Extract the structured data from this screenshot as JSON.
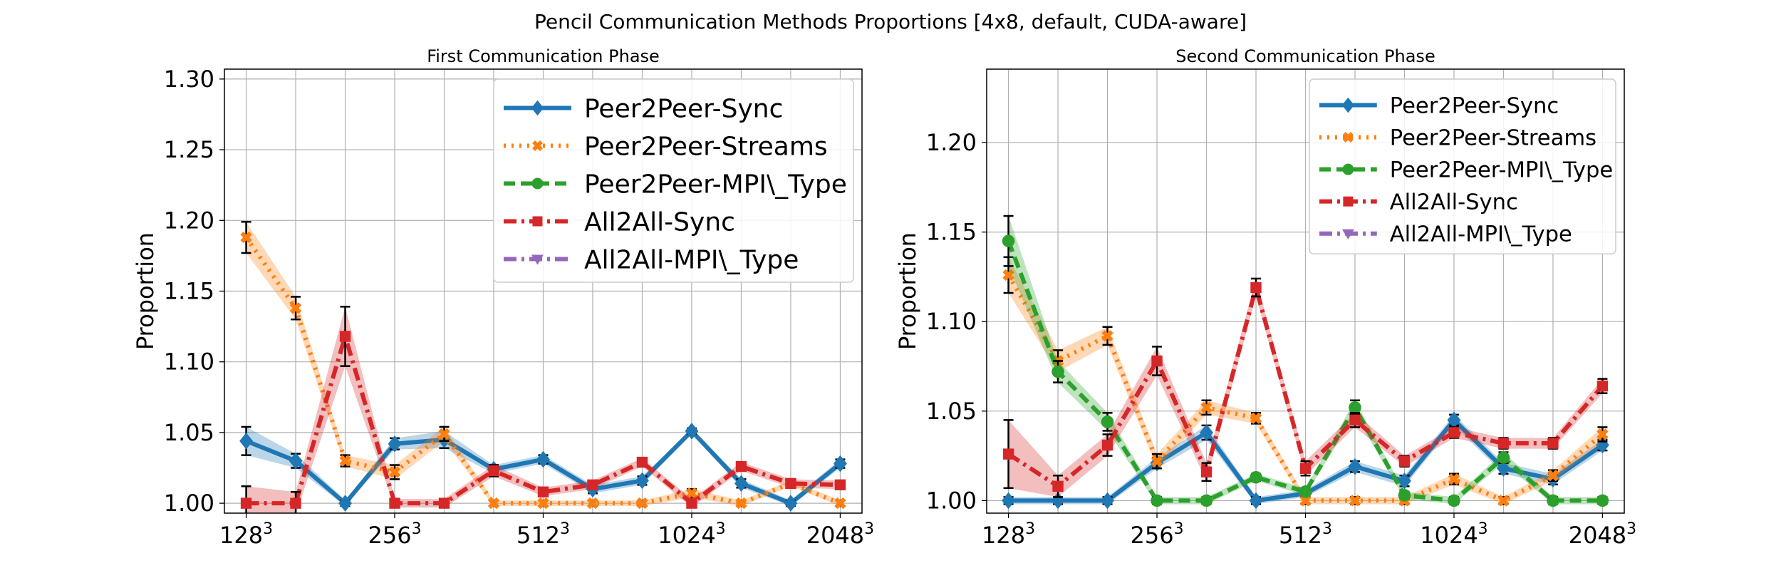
{
  "figure": {
    "suptitle": "Pencil Communication Methods Proportions [4x8, default, CUDA-aware]"
  },
  "chart_data": [
    {
      "type": "line",
      "title": "First Communication Phase",
      "ylabel": "Proportion",
      "xlabel": "",
      "ylim": [
        0.993,
        1.307
      ],
      "yticks": [
        "1.00",
        "1.05",
        "1.10",
        "1.15",
        "1.20",
        "1.25",
        "1.30"
      ],
      "ytick_values": [
        1.0,
        1.05,
        1.1,
        1.15,
        1.2,
        1.25,
        1.3
      ],
      "xtick_labels": [
        {
          "pos": 0,
          "base": "128",
          "exp": "3"
        },
        {
          "pos": 2,
          "base": "256",
          "exp": "3"
        },
        {
          "pos": 4,
          "base": "512",
          "exp": "3"
        },
        {
          "pos": 6,
          "base": "1024",
          "exp": "3"
        },
        {
          "pos": 8,
          "base": "2048",
          "exp": "3"
        }
      ],
      "x_positions": [
        0,
        0.5,
        1,
        1.5,
        2,
        2.5,
        3,
        3.5,
        4,
        4.5,
        5,
        5.5,
        6,
        6.5,
        7,
        7.5,
        8
      ],
      "grid": true,
      "legend_placement": "top-right",
      "legend_font": "large",
      "series": [
        {
          "name": "Peer2Peer-Sync",
          "color": "#1f77b4",
          "marker": "diamond",
          "linestyle": "solid",
          "values": [
            1.044,
            1.03,
            1.0,
            1.042,
            1.045,
            1.024,
            1.031,
            1.01,
            1.016,
            1.051,
            1.014,
            1.0,
            1.028
          ],
          "x_index": [
            0,
            0.5,
            1,
            1.5,
            2,
            2.5,
            3,
            3.5,
            4,
            4.5,
            5,
            5.5,
            6
          ],
          "error": [
            0.01,
            0.005,
            0.002,
            0.004,
            0.006,
            0.003,
            0.003,
            0.003,
            0.003,
            0.002,
            0.003,
            0.002,
            0.003
          ]
        },
        {
          "name": "Peer2Peer-Streams",
          "color": "#ff7f0e",
          "marker": "x",
          "linestyle": "dotted",
          "values": [
            1.188,
            1.138,
            1.03,
            1.022,
            1.049,
            1.0,
            1.0,
            1.0,
            1.0,
            1.007,
            1.0,
            1.014,
            1.0
          ],
          "x_index": [
            0,
            0.5,
            1,
            1.5,
            2,
            2.5,
            3,
            3.5,
            4,
            4.5,
            5,
            5.5,
            6
          ],
          "error": [
            0.011,
            0.008,
            0.004,
            0.005,
            0.005,
            0.002,
            0.002,
            0.002,
            0.002,
            0.003,
            0.002,
            0.002,
            0.002
          ]
        },
        {
          "name": "Peer2Peer-MPI\\_Type",
          "color": "#2ca02c",
          "marker": "circle",
          "linestyle": "dashed",
          "values": [],
          "x_index": [],
          "error": []
        },
        {
          "name": "All2All-Sync",
          "color": "#d62728",
          "marker": "square",
          "linestyle": "dashdot",
          "values": [
            1.0,
            1.0,
            1.118,
            1.0,
            1.0,
            1.023,
            1.008,
            1.013,
            1.029,
            1.0,
            1.026,
            1.014,
            1.013
          ],
          "x_index": [
            0,
            0.5,
            1,
            1.5,
            2,
            2.5,
            3,
            3.5,
            4,
            4.5,
            5,
            5.5,
            6
          ],
          "error": [
            0.012,
            0.008,
            0.021,
            0.003,
            0.003,
            0.004,
            0.003,
            0.003,
            0.003,
            0.003,
            0.003,
            0.003,
            0.003
          ]
        },
        {
          "name": "All2All-MPI\\_Type",
          "color": "#9467bd",
          "marker": "triangle-down",
          "linestyle": "dashdot",
          "values": [],
          "x_index": [],
          "error": []
        }
      ]
    },
    {
      "type": "line",
      "title": "Second Communication Phase",
      "ylabel": "Proportion",
      "xlabel": "",
      "ylim": [
        0.993,
        1.241
      ],
      "yticks": [
        "1.00",
        "1.05",
        "1.10",
        "1.15",
        "1.20"
      ],
      "ytick_values": [
        1.0,
        1.05,
        1.1,
        1.15,
        1.2
      ],
      "xtick_labels": [
        {
          "pos": 0,
          "base": "128",
          "exp": "3"
        },
        {
          "pos": 2,
          "base": "256",
          "exp": "3"
        },
        {
          "pos": 4,
          "base": "512",
          "exp": "3"
        },
        {
          "pos": 6,
          "base": "1024",
          "exp": "3"
        },
        {
          "pos": 8,
          "base": "2048",
          "exp": "3"
        }
      ],
      "grid": true,
      "legend_placement": "top-right",
      "legend_font": "normal",
      "series": [
        {
          "name": "Peer2Peer-Sync",
          "color": "#1f77b4",
          "marker": "diamond",
          "linestyle": "solid",
          "values": [
            1.0,
            1.0,
            1.0,
            1.021,
            1.038,
            1.0,
            1.004,
            1.019,
            1.011,
            1.045,
            1.018,
            1.012,
            1.031
          ],
          "x_index": [
            0,
            0.5,
            1,
            1.5,
            2,
            2.5,
            3,
            3.5,
            4,
            4.5,
            5,
            5.5,
            6
          ],
          "error": [
            0.002,
            0.002,
            0.002,
            0.003,
            0.004,
            0.002,
            0.002,
            0.003,
            0.003,
            0.003,
            0.003,
            0.003,
            0.003
          ]
        },
        {
          "name": "Peer2Peer-Streams",
          "color": "#ff7f0e",
          "marker": "x",
          "linestyle": "dotted",
          "values": [
            1.126,
            1.078,
            1.092,
            1.022,
            1.052,
            1.046,
            1.0,
            1.0,
            1.0,
            1.012,
            1.0,
            1.014,
            1.037
          ],
          "x_index": [
            0,
            0.5,
            1,
            1.5,
            2,
            2.5,
            3,
            3.5,
            4,
            4.5,
            5,
            5.5,
            6
          ],
          "error": [
            0.01,
            0.006,
            0.005,
            0.004,
            0.004,
            0.003,
            0.002,
            0.002,
            0.002,
            0.003,
            0.002,
            0.003,
            0.004
          ]
        },
        {
          "name": "Peer2Peer-MPI\\_Type",
          "color": "#2ca02c",
          "marker": "circle",
          "linestyle": "dashed",
          "values": [
            1.145,
            1.072,
            1.044,
            1.0,
            1.0,
            1.013,
            1.005,
            1.052,
            1.003,
            1.0,
            1.024,
            1.0,
            1.0
          ],
          "x_index": [
            0,
            0.5,
            1,
            1.5,
            2,
            2.5,
            3,
            3.5,
            4,
            4.5,
            5,
            5.5,
            6
          ],
          "error": [
            0.014,
            0.006,
            0.005,
            0.002,
            0.002,
            0.002,
            0.002,
            0.004,
            0.002,
            0.002,
            0.003,
            0.002,
            0.002
          ]
        },
        {
          "name": "All2All-Sync",
          "color": "#d62728",
          "marker": "square",
          "linestyle": "dashdot",
          "values": [
            1.026,
            1.008,
            1.031,
            1.078,
            1.016,
            1.119,
            1.018,
            1.045,
            1.022,
            1.038,
            1.032,
            1.032,
            1.064
          ],
          "x_index": [
            0,
            0.5,
            1,
            1.5,
            2,
            2.5,
            3,
            3.5,
            4,
            4.5,
            5,
            5.5,
            6
          ],
          "error": [
            0.019,
            0.006,
            0.006,
            0.008,
            0.005,
            0.005,
            0.004,
            0.004,
            0.003,
            0.003,
            0.003,
            0.003,
            0.004
          ]
        },
        {
          "name": "All2All-MPI\\_Type",
          "color": "#9467bd",
          "marker": "triangle-down",
          "linestyle": "dashdot",
          "values": [],
          "x_index": [],
          "error": []
        }
      ]
    }
  ]
}
